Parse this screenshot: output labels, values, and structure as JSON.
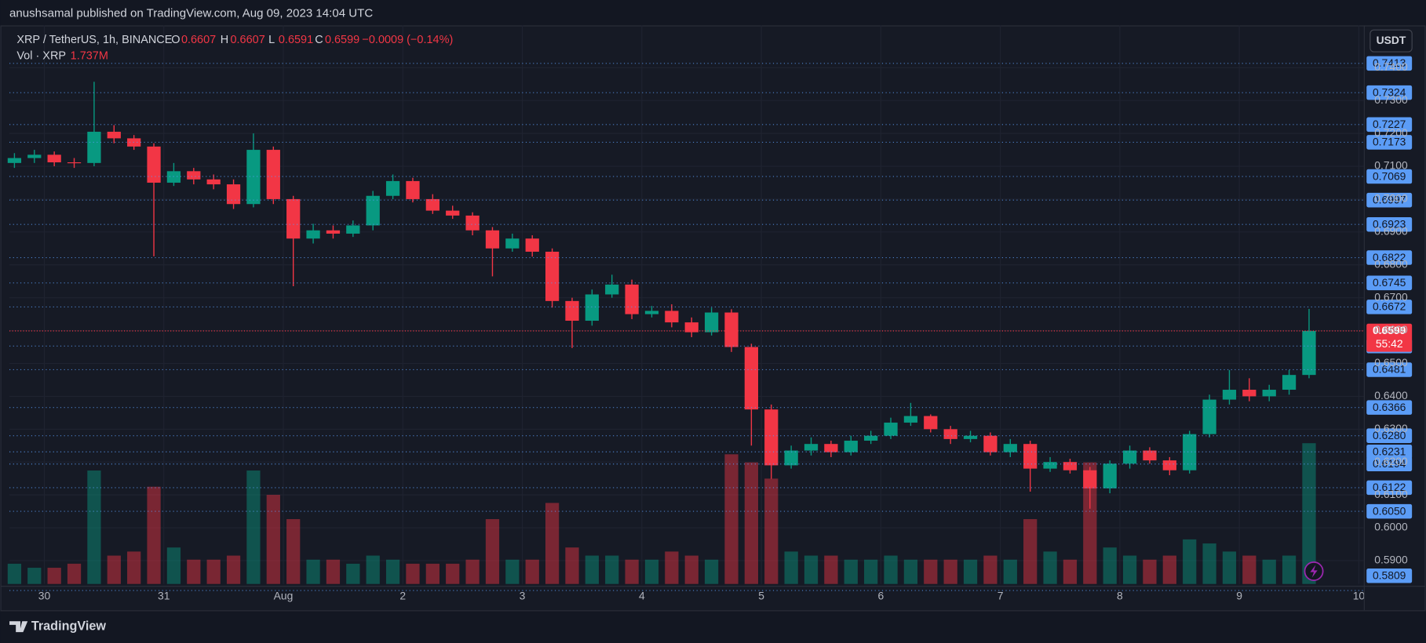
{
  "chart_data": {
    "type": "candlestick",
    "byline": "anushsamal published on TradingView.com, Aug 09, 2023 14:04 UTC",
    "symbol": "XRP / TetherUS, 1h, BINANCE",
    "legend": [
      {
        "label": "O",
        "value": 0.6607
      },
      {
        "label": "H",
        "value": 0.6607
      },
      {
        "label": "L",
        "value": 0.6591
      },
      {
        "label": "C",
        "value": 0.6599
      }
    ],
    "change_label": "−0.0009 (−0.14%)",
    "volume_legend": {
      "label": "Vol · XRP",
      "value": 1.737,
      "value_label": "1.737M"
    },
    "currency": "USDT",
    "brand": "TradingView",
    "up_color": "#089981",
    "down_color": "#f23645",
    "line_color": "#5b9cf6",
    "grid": true,
    "xlim": [
      -7,
      265
    ],
    "xticks": [
      {
        "value": 0,
        "label": "30"
      },
      {
        "value": 24,
        "label": "31"
      },
      {
        "value": 48,
        "label": "Aug"
      },
      {
        "value": 72,
        "label": "2"
      },
      {
        "value": 96,
        "label": "3"
      },
      {
        "value": 120,
        "label": "4"
      },
      {
        "value": 144,
        "label": "5"
      },
      {
        "value": 168,
        "label": "6"
      },
      {
        "value": 192,
        "label": "7"
      },
      {
        "value": 216,
        "label": "8"
      },
      {
        "value": 240,
        "label": "9"
      },
      {
        "value": 264,
        "label": "10"
      }
    ],
    "ylim": [
      0.5829,
      0.7523
    ],
    "yticks": [
      {
        "value": 0.59,
        "label": "0.5900"
      },
      {
        "value": 0.6,
        "label": "0.6000"
      },
      {
        "value": 0.61,
        "label": "0.6100"
      },
      {
        "value": 0.62,
        "label": "0.6200"
      },
      {
        "value": 0.63,
        "label": "0.6300"
      },
      {
        "value": 0.64,
        "label": "0.6400"
      },
      {
        "value": 0.65,
        "label": "0.6500"
      },
      {
        "value": 0.66,
        "label": "0.6600"
      },
      {
        "value": 0.67,
        "label": "0.6700"
      },
      {
        "value": 0.68,
        "label": "0.6800"
      },
      {
        "value": 0.69,
        "label": "0.6900"
      },
      {
        "value": 0.7,
        "label": "0.7000"
      },
      {
        "value": 0.71,
        "label": "0.7100"
      },
      {
        "value": 0.72,
        "label": "0.7200"
      },
      {
        "value": 0.73,
        "label": "0.7300"
      },
      {
        "value": 0.74,
        "label": "0.7400"
      }
    ],
    "price_lines": [
      0.7413,
      0.7324,
      0.7227,
      0.7173,
      0.7069,
      0.6997,
      0.6923,
      0.6822,
      0.6745,
      0.6672,
      0.6553,
      0.6481,
      0.6366,
      {
        "value": 0.628,
        "label": "0.6280"
      },
      0.6231,
      0.6194,
      0.6122,
      {
        "value": 0.605,
        "label": "0.6050"
      },
      0.5809
    ],
    "last_price": {
      "value": 0.6599,
      "countdown": "55:42"
    },
    "x": [
      -6,
      -2,
      2,
      6,
      10,
      14,
      18,
      22,
      26,
      30,
      34,
      38,
      42,
      46,
      50,
      54,
      58,
      62,
      66,
      70,
      74,
      78,
      82,
      86,
      90,
      94,
      98,
      102,
      106,
      110,
      114,
      118,
      122,
      126,
      130,
      134,
      138,
      142,
      146,
      150,
      154,
      158,
      162,
      166,
      170,
      174,
      178,
      182,
      186,
      190,
      194,
      198,
      202,
      206,
      210,
      214,
      218,
      222,
      226,
      230,
      234,
      238,
      242,
      246,
      250,
      254
    ],
    "open": [
      0.711,
      0.7125,
      0.7135,
      0.7112,
      0.711,
      0.7205,
      0.7185,
      0.716,
      0.705,
      0.7085,
      0.706,
      0.7045,
      0.6985,
      0.715,
      0.7,
      0.688,
      0.6905,
      0.6895,
      0.692,
      0.701,
      0.7055,
      0.7,
      0.6965,
      0.695,
      0.6905,
      0.685,
      0.688,
      0.684,
      0.669,
      0.663,
      0.671,
      0.674,
      0.665,
      0.666,
      0.6625,
      0.6595,
      0.6655,
      0.655,
      0.636,
      0.619,
      0.6235,
      0.6255,
      0.623,
      0.6265,
      0.628,
      0.632,
      0.634,
      0.63,
      0.627,
      0.628,
      0.623,
      0.6255,
      0.618,
      0.62,
      0.6175,
      0.612,
      0.6195,
      0.6235,
      0.6205,
      0.6175,
      0.6285,
      0.639,
      0.642,
      0.64,
      0.642,
      0.6465
    ],
    "high": [
      0.714,
      0.715,
      0.7145,
      0.7125,
      0.7357,
      0.7225,
      0.7195,
      0.717,
      0.711,
      0.7095,
      0.7075,
      0.706,
      0.72,
      0.716,
      0.701,
      0.6925,
      0.692,
      0.6935,
      0.7025,
      0.7075,
      0.7065,
      0.7015,
      0.698,
      0.696,
      0.6915,
      0.6895,
      0.689,
      0.685,
      0.67,
      0.6725,
      0.677,
      0.6755,
      0.6675,
      0.668,
      0.664,
      0.667,
      0.6665,
      0.656,
      0.6375,
      0.625,
      0.6275,
      0.6265,
      0.628,
      0.6295,
      0.6335,
      0.638,
      0.6345,
      0.631,
      0.6295,
      0.629,
      0.627,
      0.6265,
      0.6215,
      0.621,
      0.6185,
      0.6205,
      0.625,
      0.6245,
      0.6215,
      0.6295,
      0.6405,
      0.648,
      0.6455,
      0.6435,
      0.648,
      0.6666
    ],
    "low": [
      0.7095,
      0.711,
      0.71,
      0.7095,
      0.71,
      0.717,
      0.715,
      0.6826,
      0.704,
      0.7045,
      0.703,
      0.697,
      0.6975,
      0.6985,
      0.6735,
      0.6865,
      0.688,
      0.6885,
      0.6905,
      0.7,
      0.699,
      0.6955,
      0.694,
      0.689,
      0.6765,
      0.684,
      0.6825,
      0.667,
      0.6547,
      0.6615,
      0.67,
      0.6635,
      0.664,
      0.661,
      0.658,
      0.6585,
      0.6535,
      0.625,
      0.6149,
      0.618,
      0.622,
      0.6215,
      0.622,
      0.6255,
      0.627,
      0.631,
      0.629,
      0.6255,
      0.626,
      0.622,
      0.6215,
      0.611,
      0.617,
      0.6165,
      0.6058,
      0.6105,
      0.618,
      0.6195,
      0.616,
      0.6165,
      0.6275,
      0.6375,
      0.6385,
      0.6385,
      0.6405,
      0.6455
    ],
    "close": [
      0.7125,
      0.7135,
      0.7112,
      0.711,
      0.7205,
      0.7185,
      0.716,
      0.705,
      0.7085,
      0.706,
      0.7045,
      0.6985,
      0.715,
      0.7,
      0.688,
      0.6905,
      0.6895,
      0.692,
      0.701,
      0.7055,
      0.7,
      0.6965,
      0.695,
      0.6905,
      0.685,
      0.688,
      0.684,
      0.669,
      0.663,
      0.671,
      0.674,
      0.665,
      0.666,
      0.6625,
      0.6595,
      0.6655,
      0.655,
      0.636,
      0.619,
      0.6235,
      0.6255,
      0.623,
      0.6265,
      0.628,
      0.632,
      0.634,
      0.63,
      0.627,
      0.628,
      0.623,
      0.6255,
      0.618,
      0.62,
      0.6175,
      0.612,
      0.6195,
      0.6235,
      0.6205,
      0.6175,
      0.6285,
      0.639,
      0.642,
      0.64,
      0.642,
      0.6465,
      0.6599
    ],
    "volume": [
      0.25,
      0.2,
      0.2,
      0.25,
      1.4,
      0.35,
      0.4,
      1.2,
      0.45,
      0.3,
      0.3,
      0.35,
      1.4,
      1.1,
      0.8,
      0.3,
      0.3,
      0.25,
      0.35,
      0.3,
      0.25,
      0.25,
      0.25,
      0.3,
      0.8,
      0.3,
      0.3,
      1.0,
      0.45,
      0.35,
      0.35,
      0.3,
      0.3,
      0.4,
      0.35,
      0.3,
      1.6,
      1.5,
      1.3,
      0.4,
      0.35,
      0.35,
      0.3,
      0.3,
      0.35,
      0.3,
      0.3,
      0.3,
      0.3,
      0.35,
      0.3,
      0.8,
      0.4,
      0.3,
      1.5,
      0.45,
      0.35,
      0.3,
      0.35,
      0.55,
      0.5,
      0.4,
      0.35,
      0.3,
      0.35,
      1.737
    ]
  }
}
